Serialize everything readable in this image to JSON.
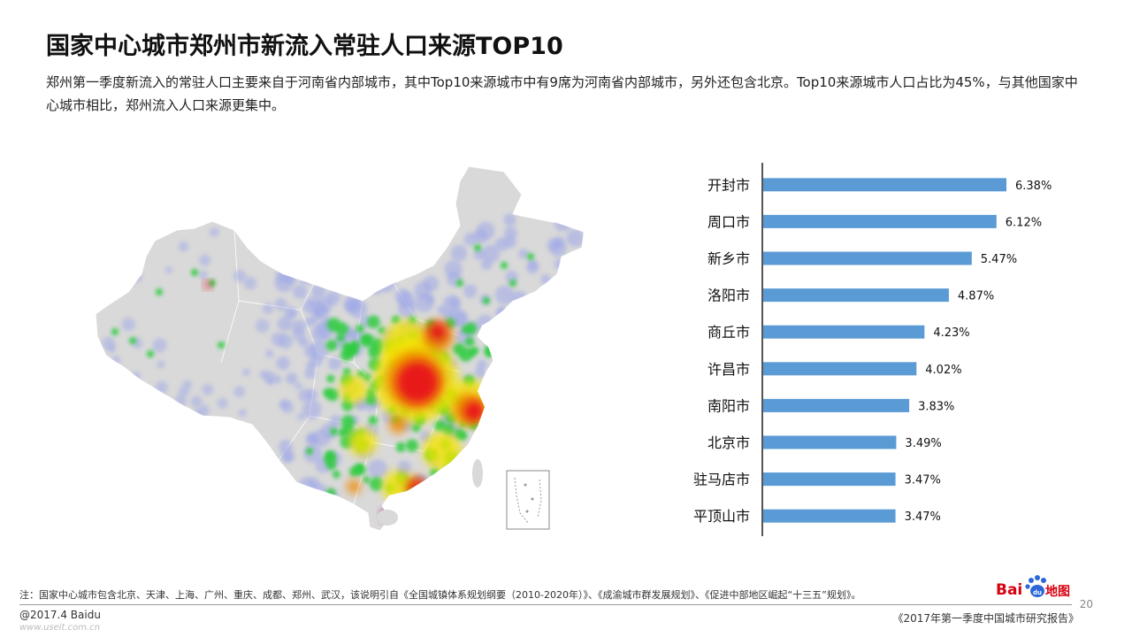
{
  "header": {
    "title": "国家中心城市郑州市新流入常驻人口来源TOP10",
    "description": "郑州第一季度新流入的常驻人口主要来自于河南省内部城市，其中Top10来源城市中有9席为河南省内部城市，另外还包含北京。Top10来源城市人口占比为45%，与其他国家中心城市相比，郑州流入人口来源更集中。"
  },
  "map": {
    "base_color": "#d9d9d9",
    "heat_colors": [
      "#9fa8e8",
      "#2ecc40",
      "#f4e400",
      "#f08a00",
      "#e8101a"
    ]
  },
  "chart_data": {
    "type": "bar",
    "orientation": "horizontal",
    "categories": [
      "开封市",
      "周口市",
      "新乡市",
      "洛阳市",
      "商丘市",
      "许昌市",
      "南阳市",
      "北京市",
      "驻马店市",
      "平顶山市"
    ],
    "values": [
      6.38,
      6.12,
      5.47,
      4.87,
      4.23,
      4.02,
      3.83,
      3.49,
      3.47,
      3.47
    ],
    "value_labels": [
      "6.38%",
      "6.12%",
      "5.47%",
      "4.87%",
      "4.23%",
      "4.02%",
      "3.83%",
      "3.49%",
      "3.47%",
      "3.47%"
    ],
    "title": "",
    "xlabel": "",
    "ylabel": "",
    "xlim": [
      0,
      7
    ],
    "bar_color": "#5b9bd5",
    "grid": false
  },
  "footer": {
    "note": "注：国家中心城市包含北京、天津、上海、广州、重庆、成都、郑州、武汉，该说明引自《全国城镇体系规划纲要（2010-2020年）》、《成渝城市群发展规划》、《促进中部地区崛起“十三五”规划》。",
    "copyright": "@2017.4 Baidu",
    "watermark": "www.useit.com.cn",
    "report_name": "《2017年第一季度中国城市研究报告》",
    "page_number": "20",
    "logo_bai": "Bai",
    "logo_map": "地图"
  }
}
